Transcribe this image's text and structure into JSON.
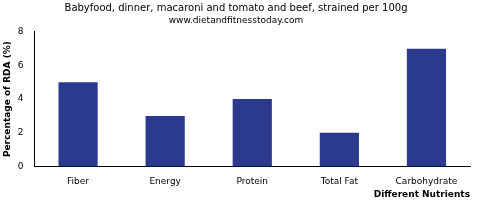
{
  "chart_data": {
    "type": "bar",
    "title": "Babyfood, dinner, macaroni and tomato and beef, strained per 100g",
    "subtitle": "www.dietandfitnesstoday.com",
    "x_label": "Different Nutrients",
    "y_label": "Percentage of RDA (%)",
    "categories": [
      "Fiber",
      "Energy",
      "Protein",
      "Total Fat",
      "Carbohydrate"
    ],
    "values": [
      5,
      3,
      4,
      2,
      7
    ],
    "color": "#2b3a8c",
    "ylim": [
      0,
      8
    ],
    "yticks": [
      0,
      2,
      4,
      6,
      8
    ],
    "grid": false
  }
}
